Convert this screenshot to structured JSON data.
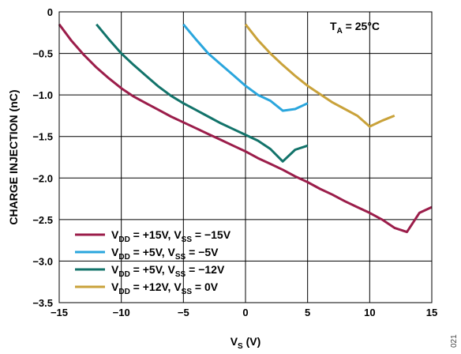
{
  "chart_data": {
    "type": "line",
    "xlabel": {
      "main": "V",
      "sub": "S",
      "unit": " (V)"
    },
    "ylabel": "CHARGE INJECTION (nC)",
    "xlim": [
      -15,
      15
    ],
    "ylim": [
      -3.5,
      0
    ],
    "x_ticks": [
      "−15",
      "−10",
      "−5",
      "0",
      "5",
      "10",
      "15"
    ],
    "y_ticks": [
      "0",
      "−0.5",
      "−1.0",
      "−1.5",
      "−2.0",
      "−2.5",
      "−3.0",
      "−3.5"
    ],
    "grid": true,
    "legend_position": "bottom-left",
    "annotation": {
      "main": "T",
      "sub": "A",
      "rest": " = 25°C"
    },
    "figure_id": "021",
    "series": [
      {
        "name": "VDD = +15V, VSS = −15V",
        "label": {
          "a": "V",
          "a_sub": "DD",
          "mid": " = +15V, V",
          "b_sub": "SS",
          "end": " = −15V"
        },
        "color": "#9b1d4a",
        "x": [
          -15,
          -14,
          -13,
          -12,
          -11,
          -10,
          -9,
          -8,
          -7,
          -6,
          -5,
          -4,
          -3,
          -2,
          -1,
          0,
          1,
          2,
          3,
          4,
          5,
          6,
          7,
          8,
          9,
          10,
          11,
          12,
          13,
          14,
          15
        ],
        "y": [
          -0.15,
          -0.35,
          -0.52,
          -0.67,
          -0.8,
          -0.92,
          -1.02,
          -1.1,
          -1.18,
          -1.26,
          -1.33,
          -1.4,
          -1.47,
          -1.54,
          -1.61,
          -1.68,
          -1.76,
          -1.83,
          -1.9,
          -1.98,
          -2.05,
          -2.13,
          -2.2,
          -2.28,
          -2.35,
          -2.42,
          -2.5,
          -2.6,
          -2.65,
          -2.42,
          -2.35
        ]
      },
      {
        "name": "VDD = +5V, VSS = −5V",
        "label": {
          "a": "V",
          "a_sub": "DD",
          "mid": " = +5V, V",
          "b_sub": "SS",
          "end": " = −5V"
        },
        "color": "#2aa6dd",
        "x": [
          -5,
          -4,
          -3,
          -2,
          -1,
          0,
          1,
          2,
          3,
          4,
          5
        ],
        "y": [
          -0.15,
          -0.33,
          -0.5,
          -0.63,
          -0.76,
          -0.89,
          -1.0,
          -1.07,
          -1.19,
          -1.17,
          -1.1
        ]
      },
      {
        "name": "VDD = +5V, VSS = −12V",
        "label": {
          "a": "V",
          "a_sub": "DD",
          "mid": " = +5V, V",
          "b_sub": "SS",
          "end": " = −12V"
        },
        "color": "#12736a",
        "x": [
          -12,
          -11,
          -10,
          -9,
          -8,
          -7,
          -6,
          -5,
          -4,
          -3,
          -2,
          -1,
          0,
          1,
          2,
          3,
          4,
          5
        ],
        "y": [
          -0.15,
          -0.33,
          -0.5,
          -0.64,
          -0.77,
          -0.9,
          -1.01,
          -1.1,
          -1.18,
          -1.26,
          -1.34,
          -1.41,
          -1.48,
          -1.55,
          -1.65,
          -1.8,
          -1.66,
          -1.61
        ]
      },
      {
        "name": "VDD = +12V, VSS = 0V",
        "label": {
          "a": "V",
          "a_sub": "DD",
          "mid": " = +12V, V",
          "b_sub": "SS",
          "end": " = 0V"
        },
        "color": "#c9a23a",
        "x": [
          0,
          1,
          2,
          3,
          4,
          5,
          6,
          7,
          8,
          9,
          10,
          11,
          12
        ],
        "y": [
          -0.15,
          -0.34,
          -0.5,
          -0.64,
          -0.77,
          -0.89,
          -0.99,
          -1.09,
          -1.17,
          -1.25,
          -1.38,
          -1.31,
          -1.25
        ]
      }
    ]
  }
}
